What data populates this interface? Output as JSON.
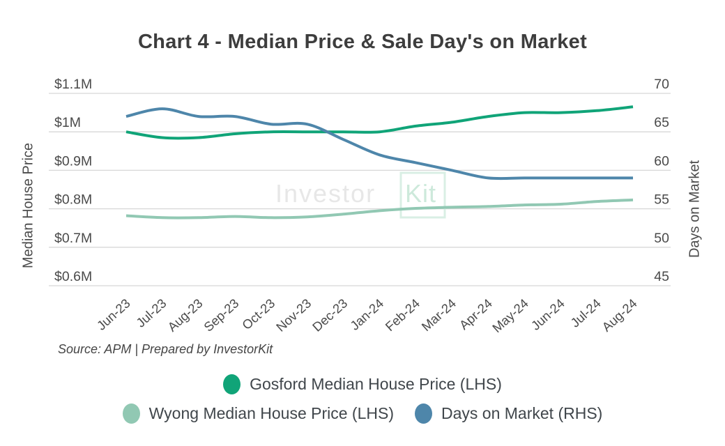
{
  "title": "Chart 4 - Median Price & Sale Day's on Market",
  "source": "Source: APM | Prepared by InvestorKit",
  "watermark": {
    "part1": "Investor",
    "part2": "Kit"
  },
  "chart_data": {
    "type": "line",
    "smooth": true,
    "grid": true,
    "legend_position": "bottom",
    "categories": [
      "Jun-23",
      "Jul-23",
      "Aug-23",
      "Sep-23",
      "Oct-23",
      "Nov-23",
      "Dec-23",
      "Jan-24",
      "Feb-24",
      "Mar-24",
      "Apr-24",
      "May-24",
      "Jun-24",
      "Jul-24",
      "Aug-24"
    ],
    "left_axis": {
      "title": "Median House Price",
      "ticks": [
        "$1.1M",
        "$1M",
        "$0.9M",
        "$0.8M",
        "$0.7M",
        "$0.6M"
      ],
      "tick_values": [
        1.1,
        1.0,
        0.9,
        0.8,
        0.7,
        0.6
      ],
      "range": [
        0.6,
        1.1
      ]
    },
    "right_axis": {
      "title": "Days on Market",
      "ticks": [
        "70",
        "65",
        "60",
        "55",
        "50",
        "45"
      ],
      "tick_values": [
        70,
        65,
        60,
        55,
        50,
        45
      ],
      "range": [
        45,
        70
      ]
    },
    "series": [
      {
        "name": "Gosford Median House Price (LHS)",
        "axis": "left",
        "color": "#10a478",
        "values": [
          1.0,
          0.985,
          0.985,
          0.995,
          1.0,
          1.0,
          1.0,
          1.0,
          1.015,
          1.025,
          1.04,
          1.05,
          1.05,
          1.055,
          1.065
        ]
      },
      {
        "name": "Wyong Median House Price (LHS)",
        "axis": "left",
        "color": "#91c8b3",
        "values": [
          0.782,
          0.777,
          0.777,
          0.78,
          0.777,
          0.779,
          0.786,
          0.795,
          0.801,
          0.804,
          0.806,
          0.81,
          0.812,
          0.819,
          0.823
        ]
      },
      {
        "name": "Days on Market (RHS)",
        "axis": "right",
        "color": "#4e86aa",
        "values": [
          67,
          68,
          67,
          67,
          66,
          66,
          64,
          62,
          61,
          60,
          59,
          59,
          59,
          59,
          59
        ]
      }
    ]
  }
}
